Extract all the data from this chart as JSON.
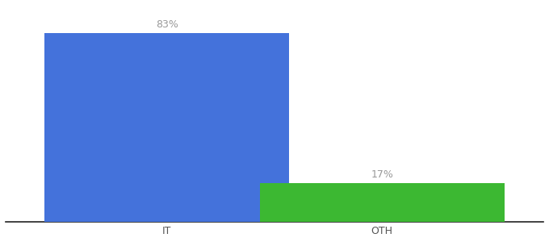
{
  "categories": [
    "IT",
    "OTH"
  ],
  "values": [
    83,
    17
  ],
  "bar_colors": [
    "#4472db",
    "#3cb832"
  ],
  "labels": [
    "83%",
    "17%"
  ],
  "ylim": [
    0,
    95
  ],
  "background_color": "#ffffff",
  "label_fontsize": 9,
  "tick_fontsize": 9,
  "label_color": "#999999",
  "bar_width": 0.5,
  "figsize": [
    6.8,
    3.0
  ],
  "dpi": 100,
  "x_positions": [
    0.33,
    0.77
  ],
  "xlim": [
    0,
    1.1
  ]
}
